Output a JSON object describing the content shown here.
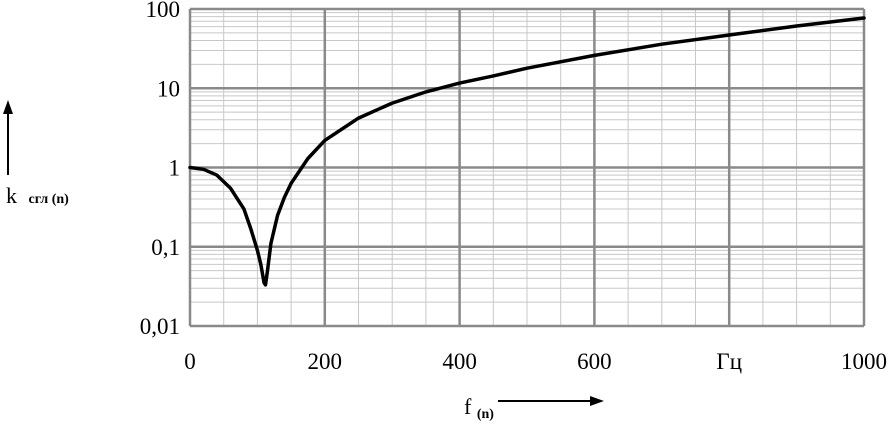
{
  "chart_data": {
    "type": "line",
    "title": "",
    "xlabel": "f",
    "xlabel_sub": "(n)",
    "ylabel": "k",
    "ylabel_sub": "сгл (n)",
    "xlim": [
      0,
      1000
    ],
    "ylim": [
      0.01,
      100
    ],
    "yscale": "log",
    "grid": true,
    "x_ticks": [
      {
        "value": 0,
        "label": "0"
      },
      {
        "value": 200,
        "label": "200"
      },
      {
        "value": 400,
        "label": "400"
      },
      {
        "value": 600,
        "label": "600"
      },
      {
        "value": 800,
        "label": "Гц"
      },
      {
        "value": 1000,
        "label": "1000"
      }
    ],
    "y_ticks": [
      {
        "value": 0.01,
        "label": "0,01"
      },
      {
        "value": 0.1,
        "label": "0,1"
      },
      {
        "value": 1,
        "label": "1"
      },
      {
        "value": 10,
        "label": "10"
      },
      {
        "value": 100,
        "label": "100"
      }
    ],
    "series": [
      {
        "color": "#000000",
        "x": [
          0,
          20,
          40,
          60,
          80,
          90,
          100,
          105,
          110,
          112,
          115,
          120,
          130,
          140,
          150,
          175,
          200,
          250,
          300,
          350,
          400,
          450,
          500,
          600,
          700,
          800,
          900,
          1000
        ],
        "y": [
          1.0,
          0.95,
          0.8,
          0.55,
          0.3,
          0.17,
          0.09,
          0.06,
          0.035,
          0.033,
          0.05,
          0.11,
          0.25,
          0.42,
          0.63,
          1.3,
          2.2,
          4.2,
          6.5,
          9.0,
          11.6,
          14.3,
          17.9,
          26.0,
          36.0,
          47.0,
          61.0,
          77.0
        ]
      }
    ]
  }
}
